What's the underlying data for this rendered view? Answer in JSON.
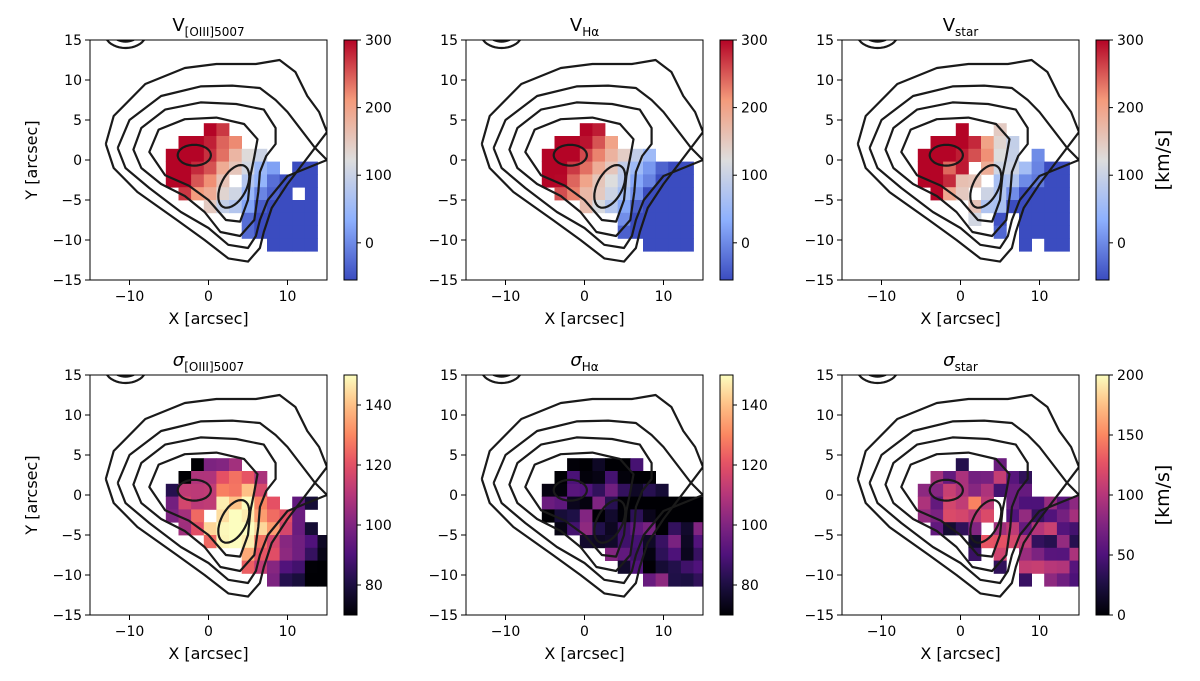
{
  "chart_data": {
    "type": "heatmap",
    "axes": {
      "xlim": [
        -15,
        15
      ],
      "ylim": [
        -15,
        15
      ],
      "xticks": [
        -10,
        0,
        10
      ],
      "yticks": [
        -15,
        -10,
        -5,
        0,
        5,
        10,
        15
      ],
      "xlabel": "X [arcsec]",
      "ylabel": "Y [arcsec]"
    },
    "panels": [
      {
        "id": "v-oiii",
        "title_main": "V",
        "title_sub": "[OIII]5007",
        "title_sigma": false,
        "cmap": "coolwarm",
        "clim": [
          -55,
          300
        ],
        "cbar_ticks": [
          0,
          100,
          200,
          300
        ],
        "map": "velocity",
        "noise": 0.05,
        "unit": "",
        "mask": [
          ".....##.......",
          "...#####......",
          "..########....",
          "..#########.##",
          "..#####.######",
          "...#########.#",
          ".....#########",
          "........######",
          "........######",
          "..........####"
        ]
      },
      {
        "id": "v-halpha",
        "title_main": "V",
        "title_sub": "Hα",
        "title_sigma": false,
        "cmap": "coolwarm",
        "clim": [
          -55,
          300
        ],
        "cbar_ticks": [
          0,
          100,
          200,
          300
        ],
        "map": "velocity",
        "noise": 0.04,
        "unit": "",
        "mask": [
          ".....##.......",
          "...#####......",
          "..#########...",
          "..############",
          "..############",
          "...###########",
          ".....#########",
          "........######",
          "........######",
          "..........####"
        ]
      },
      {
        "id": "v-star",
        "title_main": "V",
        "title_sub": "star",
        "title_sigma": false,
        "cmap": "coolwarm",
        "clim": [
          -55,
          300
        ],
        "cbar_ticks": [
          0,
          100,
          200,
          300
        ],
        "map": "velocity",
        "noise": 0.14,
        "unit": "[km/s]",
        "mask": [
          ".....#..#.....",
          "...#######....",
          "..########.#..",
          "..####.#######",
          "..#####.######",
          "...###.#######",
          "......########",
          "......#.#.####",
          "........#.####",
          "..........#.##"
        ]
      },
      {
        "id": "sigma-oiii",
        "title_main": "σ",
        "title_sub": "[OIII]5007",
        "title_sigma": true,
        "cmap": "magma",
        "clim": [
          70,
          150
        ],
        "cbar_ticks": [
          80,
          100,
          120,
          140
        ],
        "map": "sigma-oiii",
        "noise": 0.12,
        "unit": "",
        "mask": [
          "....####.......",
          "...#######.....",
          "..########.....",
          "..#########.##.",
          "..###.#######..",
          "...###########.",
          ".....##########",
          "........#######",
          "........#######",
          "..........#####"
        ]
      },
      {
        "id": "sigma-halpha",
        "title_main": "σ",
        "title_sub": "Hα",
        "title_sigma": true,
        "cmap": "magma",
        "clim": [
          70,
          150
        ],
        "cbar_ticks": [
          80,
          100,
          120,
          140
        ],
        "map": "sigma-ha",
        "noise": 0.22,
        "unit": "",
        "mask": [
          "....######.....",
          "...########....",
          "..##########...",
          "..#############",
          "..#############",
          "...############",
          ".....##########",
          ".......########",
          "........#######",
          "..........#####"
        ]
      },
      {
        "id": "sigma-star",
        "title_main": "σ",
        "title_sub": "star",
        "title_sigma": true,
        "cmap": "magma",
        "clim": [
          0,
          200
        ],
        "cbar_ticks": [
          0,
          50,
          100,
          150,
          200
        ],
        "map": "sigma-star",
        "noise": 0.22,
        "unit": "[km/s]",
        "mask": [
          ".....#..#......",
          "...########....",
          "..#########....",
          "..######.######",
          "..######.######",
          "...####.#######",
          "......#########",
          "......#.#.#####",
          "........#.#####",
          "..........#.###"
        ]
      }
    ]
  }
}
